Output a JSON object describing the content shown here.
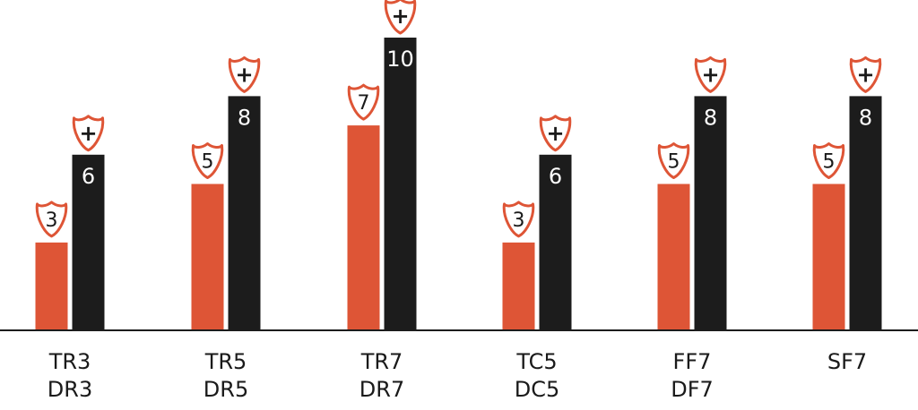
{
  "chart_data": {
    "type": "bar",
    "categories": [
      {
        "line1": "TR3",
        "line2": "DR3"
      },
      {
        "line1": "TR5",
        "line2": "DR5"
      },
      {
        "line1": "TR7",
        "line2": "DR7"
      },
      {
        "line1": "TC5",
        "line2": "DC5"
      },
      {
        "line1": "FF7",
        "line2": "DF7"
      },
      {
        "line1": "SF7",
        "line2": ""
      }
    ],
    "series": [
      {
        "values": [
          3,
          5,
          7,
          3,
          5,
          5
        ],
        "color": "#de5536"
      },
      {
        "values": [
          6,
          8,
          10,
          6,
          8,
          8
        ],
        "color": "#1c1c1c"
      }
    ],
    "badge_symbol": "+",
    "badge_icon": "shield-icon",
    "badge_stroke": "#de5536",
    "ylim": [
      0,
      10
    ],
    "grid": false,
    "legend": "none"
  }
}
